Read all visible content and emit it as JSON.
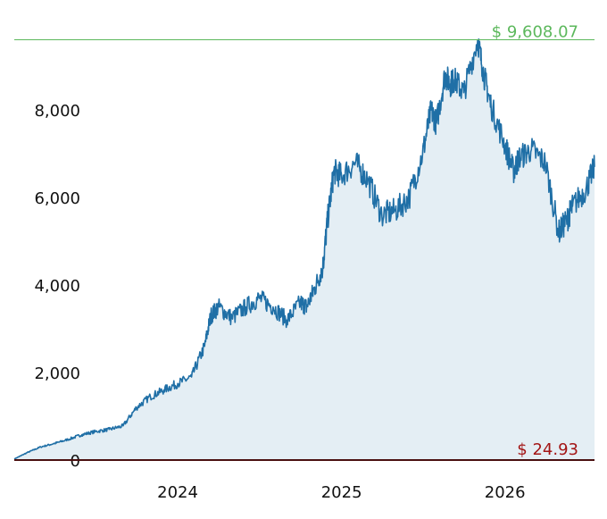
{
  "chart_data": {
    "type": "area",
    "title": "",
    "xlabel": "",
    "ylabel": "",
    "ylim": [
      0,
      9700
    ],
    "y_ticks": [
      {
        "value": 0,
        "label": "0"
      },
      {
        "value": 2000,
        "label": "2,000"
      },
      {
        "value": 4000,
        "label": "4,000"
      },
      {
        "value": 6000,
        "label": "6,000"
      },
      {
        "value": 8000,
        "label": "8,000"
      }
    ],
    "x_ticks": [
      {
        "value": "2024-01-01",
        "label": "2024"
      },
      {
        "value": "2025-01-01",
        "label": "2025"
      },
      {
        "value": "2026-01-01",
        "label": "2026"
      }
    ],
    "grid": false,
    "legend": "none",
    "high": {
      "value": 9608.07,
      "label": "$ 9,608.07"
    },
    "low": {
      "value": 24.93,
      "label": "$ 24.93"
    },
    "colors": {
      "line": "#1f6fa6",
      "fill": "#e4eef4",
      "high": "#5cb85c",
      "low": "#a31515",
      "baseline": "#4a1010"
    },
    "series": [
      {
        "x": [
          "2023-01-01",
          "2023-02-01",
          "2023-03-01",
          "2023-04-01",
          "2023-05-01",
          "2023-06-01",
          "2023-07-01",
          "2023-08-01",
          "2023-09-01",
          "2023-10-01",
          "2023-11-01",
          "2023-12-01",
          "2024-01-01",
          "2024-02-01",
          "2024-03-01",
          "2024-03-15",
          "2024-04-01",
          "2024-05-01",
          "2024-06-01",
          "2024-07-01",
          "2024-08-01",
          "2024-09-01",
          "2024-10-01",
          "2024-10-15",
          "2024-11-01",
          "2024-11-20",
          "2024-12-01",
          "2024-12-15",
          "2025-01-01",
          "2025-02-01",
          "2025-03-01",
          "2025-04-01",
          "2025-05-01",
          "2025-06-01",
          "2025-07-01",
          "2025-07-20",
          "2025-08-01",
          "2025-08-20",
          "2025-09-01",
          "2025-09-10",
          "2025-10-01",
          "2025-11-01",
          "2025-11-15",
          "2025-12-01",
          "2026-01-01",
          "2026-01-20",
          "2026-02-01",
          "2026-03-01",
          "2026-04-01",
          "2026-05-01",
          "2026-05-20",
          "2026-06-01",
          "2026-07-01",
          "2026-07-20"
        ],
        "values": [
          24.93,
          180,
          300,
          380,
          470,
          580,
          650,
          700,
          780,
          1200,
          1450,
          1600,
          1750,
          1900,
          2600,
          3300,
          3500,
          3250,
          3500,
          3700,
          3500,
          3200,
          3600,
          3500,
          3900,
          4400,
          5500,
          6600,
          6500,
          6800,
          6400,
          5600,
          5700,
          6000,
          7000,
          8000,
          7700,
          8800,
          8600,
          8700,
          8400,
          9608.07,
          8800,
          8100,
          7200,
          6600,
          6900,
          7100,
          6800,
          5200,
          5500,
          5800,
          6200,
          6700
        ]
      }
    ]
  }
}
